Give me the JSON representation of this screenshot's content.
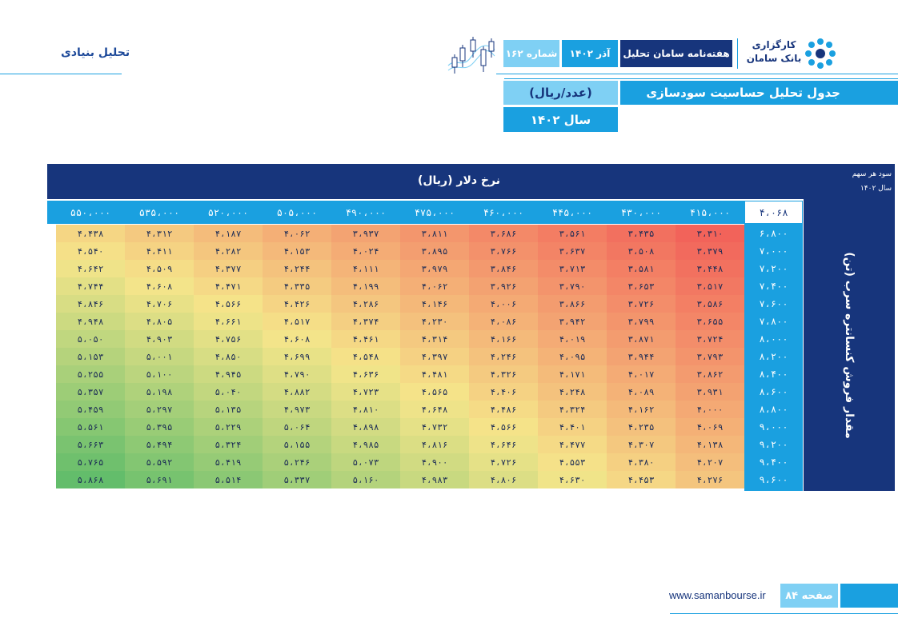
{
  "header": {
    "section_title": "تحلیل بنیادی",
    "issue": "شماره ۱۶۲",
    "date": "آذر ۱۴۰۲",
    "publication": "هفته‌نامه سامان تحلیل",
    "logo_line1": "کارگزاری",
    "logo_line2": "بانک سامان"
  },
  "title": {
    "main": "جدول تحلیل حساسیت سودسازی",
    "unit": "(عدد/ریال)",
    "year": "سال ۱۴۰۲"
  },
  "table": {
    "column_axis_label": "نرخ دلار (ریال)",
    "row_axis_label": "مقدار فروش کنسانتره سرب (تن)",
    "corner_label_1": "سود هر سهم",
    "corner_label_2": "سال ۱۴۰۲",
    "base_eps": "۴،۰۶۸",
    "dollar_rates": [
      "۴۱۵،۰۰۰",
      "۴۳۰،۰۰۰",
      "۴۴۵،۰۰۰",
      "۴۶۰،۰۰۰",
      "۴۷۵،۰۰۰",
      "۴۹۰،۰۰۰",
      "۵۰۵،۰۰۰",
      "۵۲۰،۰۰۰",
      "۵۳۵،۰۰۰",
      "۵۵۰،۰۰۰"
    ],
    "sales_volumes": [
      "۶،۸۰۰",
      "۷،۰۰۰",
      "۷،۲۰۰",
      "۷،۴۰۰",
      "۷،۶۰۰",
      "۷،۸۰۰",
      "۸،۰۰۰",
      "۸،۲۰۰",
      "۸،۴۰۰",
      "۸،۶۰۰",
      "۸،۸۰۰",
      "۹،۰۰۰",
      "۹،۲۰۰",
      "۹،۴۰۰",
      "۹،۶۰۰"
    ],
    "values": [
      [
        3310,
        3435,
        3561,
        3686,
        3811,
        3937,
        4062,
        4187,
        4312,
        4438
      ],
      [
        3379,
        3508,
        3637,
        3766,
        3895,
        4024,
        4153,
        4282,
        4411,
        4540
      ],
      [
        3448,
        3581,
        3713,
        3846,
        3979,
        4111,
        4244,
        4377,
        4509,
        4642
      ],
      [
        3517,
        3653,
        3790,
        3926,
        4062,
        4199,
        4335,
        4471,
        4608,
        4744
      ],
      [
        3586,
        3726,
        3866,
        4006,
        4146,
        4286,
        4426,
        4566,
        4706,
        4846
      ],
      [
        3655,
        3799,
        3942,
        4086,
        4230,
        4374,
        4517,
        4661,
        4805,
        4948
      ],
      [
        3724,
        3871,
        4019,
        4166,
        4314,
        4461,
        4608,
        4756,
        4903,
        5050
      ],
      [
        3793,
        3944,
        4095,
        4246,
        4397,
        4548,
        4699,
        4850,
        5001,
        5153
      ],
      [
        3862,
        4017,
        4171,
        4326,
        4481,
        4636,
        4790,
        4945,
        5100,
        5255
      ],
      [
        3931,
        4089,
        4248,
        4406,
        4565,
        4723,
        4882,
        5040,
        5198,
        5357
      ],
      [
        4000,
        4162,
        4324,
        4486,
        4648,
        4810,
        4973,
        5135,
        5297,
        5459
      ],
      [
        4069,
        4235,
        4401,
        4566,
        4732,
        4898,
        5064,
        5229,
        5395,
        5561
      ],
      [
        4138,
        4307,
        4477,
        4646,
        4816,
        4985,
        5155,
        5324,
        5494,
        5663
      ],
      [
        4207,
        4380,
        4553,
        4726,
        4900,
        5073,
        5246,
        5419,
        5592,
        5765
      ],
      [
        4276,
        4453,
        4630,
        4806,
        4983,
        5160,
        5337,
        5514,
        5691,
        5868
      ]
    ]
  },
  "colors": {
    "navy": "#17357c",
    "blue": "#1aa0e0",
    "light_blue": "#7fd0f4",
    "heat_low": "#f2635a",
    "heat_mid": "#f5e58a",
    "heat_high": "#63bd6b"
  },
  "footer": {
    "url": "www.samanbourse.ir",
    "page": "صفحه ۸۴"
  }
}
